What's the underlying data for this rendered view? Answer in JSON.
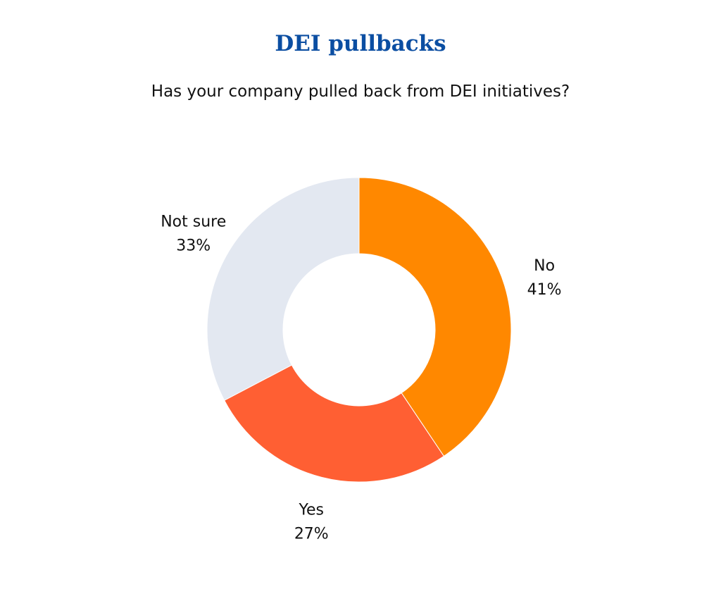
{
  "colors": {
    "title": "#0b4ea2",
    "background": "#ffffff"
  },
  "chart_data": {
    "type": "pie",
    "variant": "donut",
    "title": "DEI pullbacks",
    "subtitle": "Has your company pulled back from DEI initiatives?",
    "slices": [
      {
        "label": "No",
        "value": 41,
        "display": "41%",
        "color": "#ff8800"
      },
      {
        "label": "Yes",
        "value": 27,
        "display": "27%",
        "color": "#ff5f33"
      },
      {
        "label": "Not sure",
        "value": 33,
        "display": "33%",
        "color": "#e3e8f1"
      }
    ]
  }
}
